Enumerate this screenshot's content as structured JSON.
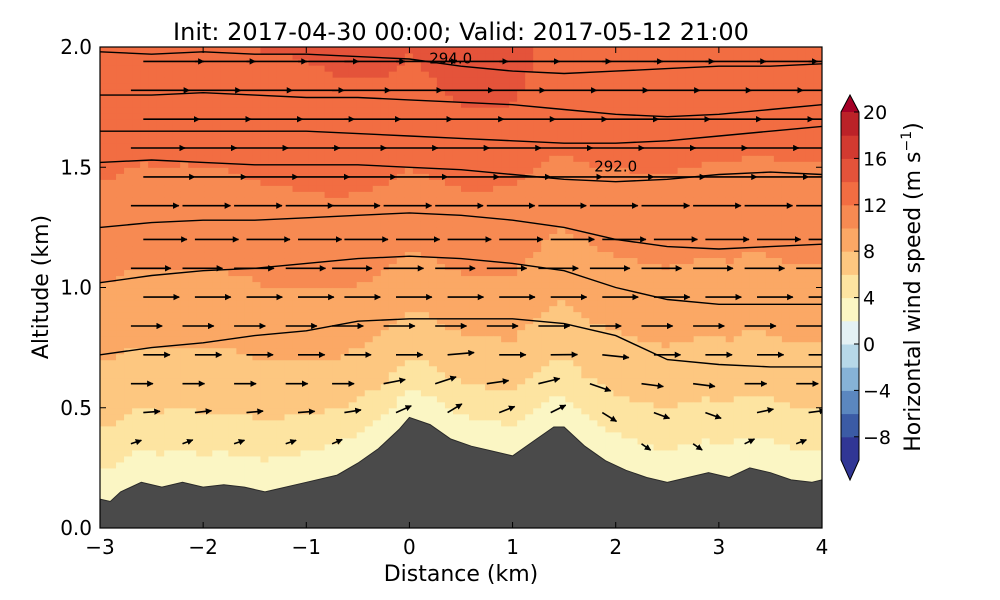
{
  "chart_data": {
    "type": "heatmap",
    "title": "Init: 2017-04-30 00:00; Valid: 2017-05-12 21:00",
    "xlabel": "Distance (km)",
    "ylabel": "Altitude (km)",
    "xlim": [
      -3,
      4
    ],
    "ylim": [
      0.0,
      2.0
    ],
    "x_ticks": [
      "−3",
      "−2",
      "−1",
      "0",
      "1",
      "2",
      "3",
      "4"
    ],
    "x_tick_values": [
      -3,
      -2,
      -1,
      0,
      1,
      2,
      3,
      4
    ],
    "y_ticks": [
      "0.0",
      "0.5",
      "1.0",
      "1.5",
      "2.0"
    ],
    "y_tick_values": [
      0.0,
      0.5,
      1.0,
      1.5,
      2.0
    ],
    "colorbar": {
      "label": "Horizontal wind speed (m s",
      "label_superscript": "−1",
      "label_close": ")",
      "range": [
        -10,
        20
      ],
      "levels": [
        -10,
        -8,
        -6,
        -4,
        -2,
        0,
        2,
        4,
        6,
        8,
        10,
        12,
        14,
        16,
        18,
        20
      ],
      "tick_labels": [
        "20",
        "16",
        "12",
        "8",
        "4",
        "0",
        "−4",
        "−8"
      ],
      "tick_values": [
        20,
        16,
        12,
        8,
        4,
        0,
        -4,
        -8
      ],
      "extend": "both",
      "colormap": "RdYlBu_r"
    },
    "terrain": {
      "color": "#4a4a4a",
      "x": [
        -3.0,
        -2.9,
        -2.8,
        -2.6,
        -2.4,
        -2.2,
        -2.0,
        -1.8,
        -1.6,
        -1.4,
        -1.3,
        -1.0,
        -0.7,
        -0.5,
        -0.3,
        -0.1,
        0.0,
        0.2,
        0.4,
        0.6,
        0.8,
        1.0,
        1.2,
        1.4,
        1.5,
        1.7,
        1.9,
        2.1,
        2.3,
        2.5,
        2.7,
        2.9,
        3.1,
        3.3,
        3.5,
        3.7,
        3.9,
        4.0
      ],
      "y": [
        0.12,
        0.11,
        0.15,
        0.19,
        0.17,
        0.19,
        0.17,
        0.18,
        0.17,
        0.15,
        0.16,
        0.19,
        0.22,
        0.27,
        0.33,
        0.41,
        0.46,
        0.43,
        0.37,
        0.34,
        0.32,
        0.3,
        0.36,
        0.42,
        0.42,
        0.34,
        0.28,
        0.24,
        0.21,
        0.19,
        0.21,
        0.23,
        0.21,
        0.25,
        0.23,
        0.2,
        0.19,
        0.2
      ]
    },
    "contours": [
      {
        "label": "294.0",
        "label_at": [
          0.4,
          1.94
        ],
        "x": [
          -3,
          -2.5,
          -2,
          -1.5,
          -1,
          -0.5,
          0,
          0.5,
          1,
          1.5,
          2,
          2.5,
          3,
          3.5,
          4
        ],
        "y": [
          1.98,
          1.97,
          1.98,
          1.97,
          1.97,
          1.96,
          1.95,
          1.92,
          1.9,
          1.89,
          1.9,
          1.91,
          1.92,
          1.92,
          1.93
        ]
      },
      {
        "x": [
          -3,
          -2.5,
          -2,
          -1.5,
          -1,
          -0.5,
          0,
          0.5,
          1,
          1.5,
          2,
          2.5,
          3,
          3.5,
          4
        ],
        "y": [
          1.8,
          1.8,
          1.81,
          1.8,
          1.79,
          1.79,
          1.78,
          1.77,
          1.76,
          1.74,
          1.72,
          1.71,
          1.72,
          1.74,
          1.76
        ]
      },
      {
        "x": [
          -3,
          -2.5,
          -2,
          -1.5,
          -1,
          -0.5,
          0,
          0.5,
          1,
          1.5,
          2,
          2.5,
          3,
          3.5,
          4
        ],
        "y": [
          1.65,
          1.65,
          1.65,
          1.65,
          1.65,
          1.64,
          1.63,
          1.62,
          1.61,
          1.6,
          1.6,
          1.61,
          1.63,
          1.65,
          1.67
        ]
      },
      {
        "label": "292.0",
        "label_at": [
          2.0,
          1.49
        ],
        "x": [
          -3,
          -2.5,
          -2,
          -1.5,
          -1,
          -0.5,
          0,
          0.5,
          1,
          1.5,
          2,
          2.5,
          3,
          3.5,
          4
        ],
        "y": [
          1.52,
          1.53,
          1.52,
          1.51,
          1.51,
          1.51,
          1.5,
          1.49,
          1.47,
          1.45,
          1.44,
          1.45,
          1.47,
          1.48,
          1.47
        ]
      },
      {
        "x": [
          -3,
          -2.5,
          -2,
          -1.5,
          -1,
          -0.5,
          0,
          0.5,
          1,
          1.5,
          2,
          2.5,
          3,
          3.5,
          4
        ],
        "y": [
          1.25,
          1.27,
          1.28,
          1.28,
          1.29,
          1.3,
          1.31,
          1.3,
          1.28,
          1.25,
          1.2,
          1.17,
          1.16,
          1.17,
          1.18
        ]
      },
      {
        "x": [
          -3,
          -2.5,
          -2,
          -1.5,
          -1,
          -0.5,
          0,
          0.5,
          1,
          1.5,
          2,
          2.5,
          3,
          3.5,
          4
        ],
        "y": [
          1.02,
          1.05,
          1.07,
          1.08,
          1.1,
          1.12,
          1.13,
          1.12,
          1.1,
          1.07,
          1.0,
          0.95,
          0.93,
          0.93,
          0.93
        ]
      },
      {
        "x": [
          -3,
          -2.5,
          -2,
          -1.5,
          -1,
          -0.5,
          0,
          0.5,
          1,
          1.5,
          2,
          2.5,
          3,
          3.5,
          4
        ],
        "y": [
          0.72,
          0.75,
          0.77,
          0.8,
          0.82,
          0.86,
          0.87,
          0.87,
          0.87,
          0.85,
          0.8,
          0.7,
          0.68,
          0.67,
          0.67
        ]
      }
    ],
    "wind_vectors": {
      "color": "#000000",
      "x_columns": [
        -2.7,
        -2.2,
        -1.7,
        -1.2,
        -0.75,
        -0.25,
        0.25,
        0.75,
        1.25,
        1.75,
        2.25,
        2.75,
        3.25,
        3.75
      ],
      "levels": [
        0.35,
        0.48,
        0.6,
        0.72,
        0.84,
        0.96,
        1.08,
        1.2,
        1.34,
        1.46,
        1.58,
        1.7,
        1.82,
        1.94
      ],
      "speed_profile_alt": [
        0.0,
        0.3,
        0.6,
        1.0,
        1.5,
        2.0
      ],
      "speed_profile_ms": [
        0.5,
        2.0,
        5.0,
        8.5,
        12.0,
        14.0
      ]
    },
    "speed_field_profile": {
      "height_above_ground_km": [
        0.0,
        0.1,
        0.25,
        0.5,
        0.8,
        1.2,
        1.6,
        1.9
      ],
      "speed_ms": [
        2.0,
        3.5,
        5.5,
        7.5,
        9.5,
        11.5,
        13.0,
        14.0
      ]
    }
  }
}
